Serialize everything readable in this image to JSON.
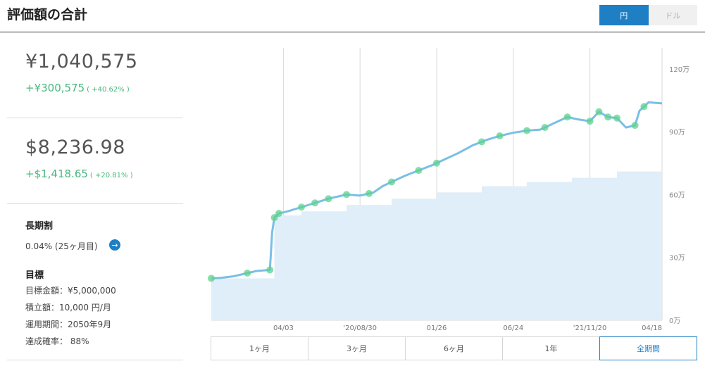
{
  "header": {
    "title": "評価額の合計",
    "currency_yen": "円",
    "currency_dollar": "ドル"
  },
  "summary": {
    "yen_total": "¥1,040,575",
    "yen_gain": "+¥300,575",
    "yen_gain_pct": "( +40.62% )",
    "usd_total": "$8,236.98",
    "usd_gain": "+$1,418.65",
    "usd_gain_pct": "( +20.81% )"
  },
  "long_term": {
    "heading": "長期割",
    "value": "0.04% (25ヶ月目)"
  },
  "goal": {
    "heading": "目標",
    "amount": "目標金額：¥5,000,000",
    "monthly": "積立額：10,000 円/月",
    "period": "運用期間：2050年9月",
    "probability": "達成確率： 88%"
  },
  "range_tabs": [
    "1ヶ月",
    "3ヶ月",
    "6ヶ月",
    "1年",
    "全期間"
  ],
  "active_range": "全期間",
  "colors": {
    "accent": "#1f7fc4",
    "gain": "#47b87c",
    "line": "#79bfe6",
    "area": "#dfeef8",
    "marker": "#5fd08f"
  },
  "chart_data": {
    "type": "area",
    "y_unit": "万",
    "ylim": [
      0,
      130
    ],
    "y_ticks": [
      0,
      30,
      60,
      90,
      120
    ],
    "y_tick_labels": [
      "0万",
      "30万",
      "60万",
      "90万",
      "120万"
    ],
    "x_tick_labels": [
      "04/03",
      "'20/08/30",
      "01/26",
      "06/24",
      "'21/11/20",
      "04/18"
    ],
    "x_tick_positions": [
      0.16,
      0.33,
      0.5,
      0.67,
      0.84,
      1.0
    ],
    "grid": "vertical",
    "series": [
      {
        "role": "valuation",
        "x": [
          0.0,
          0.02,
          0.05,
          0.08,
          0.1,
          0.13,
          0.135,
          0.14,
          0.15,
          0.17,
          0.2,
          0.23,
          0.26,
          0.3,
          0.33,
          0.36,
          0.38,
          0.4,
          0.43,
          0.46,
          0.49,
          0.52,
          0.55,
          0.58,
          0.61,
          0.64,
          0.67,
          0.7,
          0.73,
          0.76,
          0.79,
          0.81,
          0.84,
          0.86,
          0.88,
          0.9,
          0.92,
          0.94,
          0.95,
          0.96,
          0.97,
          1.0
        ],
        "values": [
          20,
          20.2,
          21,
          22.5,
          23.5,
          24,
          42,
          49,
          51,
          52,
          54,
          56,
          58,
          60,
          59.5,
          61,
          64,
          66,
          69,
          71.5,
          74,
          77,
          80,
          83.5,
          86,
          88,
          89.5,
          90.5,
          91,
          94,
          97,
          96,
          95,
          99.5,
          97,
          96.5,
          92,
          93,
          100,
          102,
          104,
          103.5
        ]
      },
      {
        "role": "contribution",
        "x": [
          0.0,
          0.135,
          0.14,
          0.2,
          0.3,
          0.4,
          0.5,
          0.6,
          0.7,
          0.8,
          0.9,
          1.0
        ],
        "values": [
          20,
          20,
          50,
          52,
          55,
          58,
          61,
          64,
          66,
          68,
          71,
          73.5
        ]
      }
    ],
    "markers_x": [
      0.0,
      0.08,
      0.13,
      0.14,
      0.15,
      0.2,
      0.23,
      0.26,
      0.3,
      0.35,
      0.4,
      0.46,
      0.5,
      0.6,
      0.64,
      0.7,
      0.74,
      0.79,
      0.84,
      0.86,
      0.88,
      0.9,
      0.94,
      0.96
    ]
  }
}
